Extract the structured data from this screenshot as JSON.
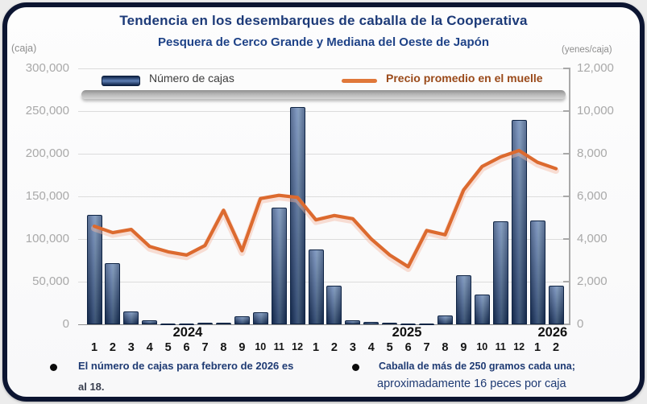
{
  "title": {
    "line1": "Tendencia en los desembarques de caballa de la Cooperativa",
    "line2": "Pesquera de Cerco Grande y Mediana del Oeste de Japón"
  },
  "axes": {
    "left_unit": "(caja)",
    "right_unit": "(yenes/caja)"
  },
  "legend": {
    "bars": "Número de cajas",
    "line": "Precio promedio en el muelle"
  },
  "footnotes": {
    "left": {
      "line1": "El número de cajas para febrero de 2026 es",
      "line2": "al 18."
    },
    "right": {
      "line1": "Caballa de más de 250 gramos cada una;",
      "line2": "aproximadamente 16 peces por caja"
    }
  },
  "colors": {
    "bar_border": "#0f2444",
    "bar_fill_light": "#4f70a8",
    "bar_fill_dark": "#1d3a6b",
    "price_line": "#dc6a2f",
    "price_line_glow": "#f4b9a2",
    "title_navy": "#1c3a78",
    "legend_line_text": "#9a4a1a",
    "axis_text": "#a9a9a9",
    "frame_border": "#0c1531"
  },
  "chart_data": {
    "type": "bar",
    "subtype": "bar+line combo, dual axis",
    "title": "Tendencia en los desembarques de caballa de la Cooperativa Pesquera de Cerco Grande y Mediana del Oeste de Japón",
    "months": [
      "1",
      "2",
      "3",
      "4",
      "5",
      "6",
      "7",
      "8",
      "9",
      "10",
      "11",
      "12",
      "1",
      "2",
      "3",
      "4",
      "5",
      "6",
      "7",
      "8",
      "9",
      "10",
      "11",
      "12",
      "1",
      "2"
    ],
    "year_labels": [
      {
        "label": "2024",
        "index": 5.06
      },
      {
        "label": "2025",
        "index": 16.93
      },
      {
        "label": "2026",
        "index": 24.82
      }
    ],
    "series": [
      {
        "name": "Número de cajas",
        "type": "bar",
        "axis": "left",
        "values": [
          128000,
          72000,
          15000,
          5000,
          1000,
          500,
          2000,
          1500,
          9000,
          14000,
          137000,
          255000,
          88000,
          45000,
          5000,
          2500,
          2000,
          500,
          500,
          10000,
          58000,
          35000,
          121000,
          240000,
          122000,
          45000
        ]
      },
      {
        "name": "Precio promedio en el muelle",
        "type": "line",
        "axis": "right",
        "values": [
          4600,
          4300,
          4450,
          3650,
          3400,
          3250,
          3700,
          5350,
          3450,
          5900,
          6050,
          5950,
          4900,
          5100,
          4950,
          4000,
          3250,
          2700,
          4400,
          4200,
          6300,
          7400,
          7850,
          8150,
          7600,
          7300
        ]
      }
    ],
    "left_axis": {
      "label": "(caja)",
      "min": 0,
      "max": 300000,
      "step": 50000,
      "tick_labels": [
        "0",
        "50,000",
        "100,000",
        "150,000",
        "200,000",
        "250,000",
        "300,000"
      ]
    },
    "right_axis": {
      "label": "(yenes/caja)",
      "min": 0,
      "max": 12000,
      "step": 2000,
      "tick_labels": [
        "0",
        "2,000",
        "4,000",
        "6,000",
        "8,000",
        "10,000",
        "12,000"
      ]
    },
    "grid": true,
    "legend_position": "top"
  }
}
